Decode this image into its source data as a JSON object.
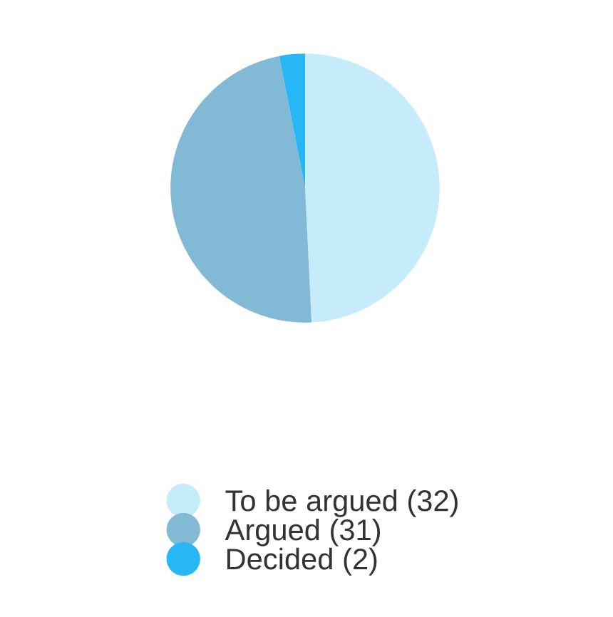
{
  "chart_data": {
    "type": "pie",
    "categories": [
      "To be argued (32)",
      "Argued (31)",
      "Decided (2)"
    ],
    "values": [
      32,
      31,
      2
    ],
    "colors": [
      "#c6ebfb",
      "#82bad6",
      "#29b6f6"
    ],
    "legend": "bottom"
  }
}
